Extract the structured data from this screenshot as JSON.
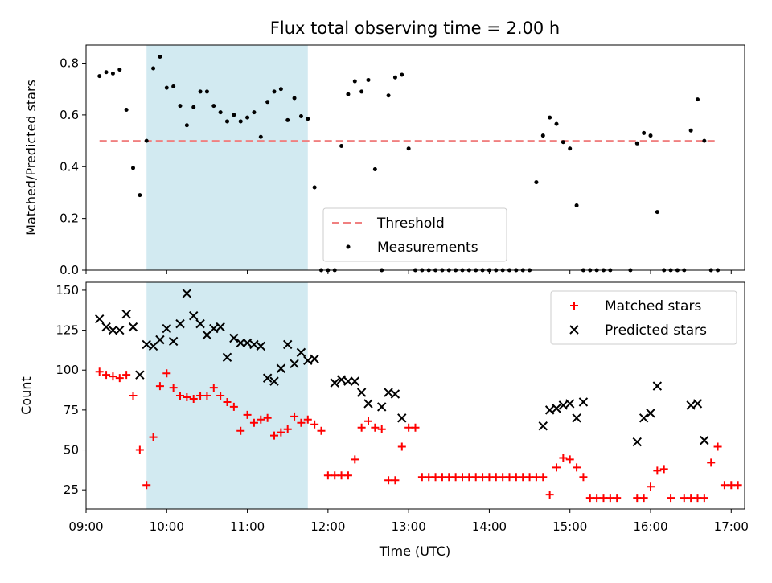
{
  "chart_data": [
    {
      "type": "scatter",
      "title": "Flux total observing time = 2.00 h",
      "xlabel": "",
      "ylabel": "Matched/Predicted stars",
      "xlim": [
        "09:00",
        "17:10"
      ],
      "ylim": [
        0,
        0.87
      ],
      "yticks": [
        "0.0",
        "0.2",
        "0.4",
        "0.6",
        "0.8"
      ],
      "highlight_span": [
        "09:45",
        "11:45"
      ],
      "highlight_color": "#add8e6",
      "threshold": {
        "name": "Threshold",
        "value": 0.5,
        "x_range": [
          "09:10",
          "16:50"
        ],
        "color": "#f08080"
      },
      "legend_position": "lower center",
      "series": [
        {
          "name": "Measurements",
          "color": "#000000",
          "points": [
            [
              "09:10",
              0.75
            ],
            [
              "09:15",
              0.765
            ],
            [
              "09:20",
              0.76
            ],
            [
              "09:25",
              0.775
            ],
            [
              "09:30",
              0.62
            ],
            [
              "09:35",
              0.395
            ],
            [
              "09:40",
              0.29
            ],
            [
              "09:45",
              0.5
            ],
            [
              "09:50",
              0.78
            ],
            [
              "09:55",
              0.825
            ],
            [
              "10:00",
              0.705
            ],
            [
              "10:05",
              0.71
            ],
            [
              "10:10",
              0.635
            ],
            [
              "10:15",
              0.56
            ],
            [
              "10:20",
              0.63
            ],
            [
              "10:25",
              0.69
            ],
            [
              "10:30",
              0.69
            ],
            [
              "10:35",
              0.635
            ],
            [
              "10:40",
              0.61
            ],
            [
              "10:45",
              0.575
            ],
            [
              "10:50",
              0.6
            ],
            [
              "10:55",
              0.575
            ],
            [
              "11:00",
              0.59
            ],
            [
              "11:05",
              0.61
            ],
            [
              "11:10",
              0.515
            ],
            [
              "11:15",
              0.65
            ],
            [
              "11:20",
              0.69
            ],
            [
              "11:25",
              0.7
            ],
            [
              "11:30",
              0.58
            ],
            [
              "11:35",
              0.665
            ],
            [
              "11:40",
              0.595
            ],
            [
              "11:45",
              0.585
            ],
            [
              "11:50",
              0.32
            ],
            [
              "11:55",
              0
            ],
            [
              "12:00",
              0
            ],
            [
              "12:05",
              0
            ],
            [
              "12:10",
              0.48
            ],
            [
              "12:15",
              0.68
            ],
            [
              "12:20",
              0.73
            ],
            [
              "12:25",
              0.69
            ],
            [
              "12:30",
              0.735
            ],
            [
              "12:35",
              0.39
            ],
            [
              "12:40",
              0
            ],
            [
              "12:45",
              0.675
            ],
            [
              "12:50",
              0.745
            ],
            [
              "12:55",
              0.755
            ],
            [
              "13:00",
              0.47
            ],
            [
              "13:05",
              0
            ],
            [
              "13:10",
              0
            ],
            [
              "13:15",
              0
            ],
            [
              "13:20",
              0
            ],
            [
              "13:25",
              0
            ],
            [
              "13:30",
              0
            ],
            [
              "13:35",
              0
            ],
            [
              "13:40",
              0
            ],
            [
              "13:45",
              0
            ],
            [
              "13:50",
              0
            ],
            [
              "13:55",
              0
            ],
            [
              "14:00",
              0
            ],
            [
              "14:05",
              0
            ],
            [
              "14:10",
              0
            ],
            [
              "14:15",
              0
            ],
            [
              "14:20",
              0
            ],
            [
              "14:25",
              0
            ],
            [
              "14:30",
              0
            ],
            [
              "14:35",
              0.34
            ],
            [
              "14:40",
              0.52
            ],
            [
              "14:45",
              0.59
            ],
            [
              "14:50",
              0.565
            ],
            [
              "14:55",
              0.495
            ],
            [
              "15:00",
              0.47
            ],
            [
              "15:05",
              0.25
            ],
            [
              "15:10",
              0
            ],
            [
              "15:15",
              0
            ],
            [
              "15:20",
              0
            ],
            [
              "15:25",
              0
            ],
            [
              "15:30",
              0
            ],
            [
              "15:45",
              0
            ],
            [
              "15:50",
              0.49
            ],
            [
              "15:55",
              0.53
            ],
            [
              "16:00",
              0.52
            ],
            [
              "16:05",
              0.225
            ],
            [
              "16:10",
              0
            ],
            [
              "16:15",
              0
            ],
            [
              "16:20",
              0
            ],
            [
              "16:25",
              0
            ],
            [
              "16:30",
              0.54
            ],
            [
              "16:35",
              0.66
            ],
            [
              "16:40",
              0.5
            ],
            [
              "16:45",
              0
            ],
            [
              "16:50",
              0
            ]
          ]
        }
      ]
    },
    {
      "type": "scatter",
      "title": "",
      "xlabel": "Time (UTC)",
      "ylabel": "Count",
      "xlim": [
        "09:00",
        "17:10"
      ],
      "ylim": [
        13,
        155
      ],
      "yticks": [
        "25",
        "50",
        "75",
        "100",
        "125",
        "150"
      ],
      "xticks": [
        "09:00",
        "10:00",
        "11:00",
        "12:00",
        "13:00",
        "14:00",
        "15:00",
        "16:00",
        "17:00"
      ],
      "highlight_span": [
        "09:45",
        "11:45"
      ],
      "highlight_color": "#add8e6",
      "legend_position": "upper right",
      "series": [
        {
          "name": "Matched stars",
          "marker": "+",
          "color": "#ff0000",
          "points": [
            [
              "09:10",
              99
            ],
            [
              "09:15",
              97
            ],
            [
              "09:20",
              96
            ],
            [
              "09:25",
              95
            ],
            [
              "09:30",
              97
            ],
            [
              "09:35",
              84
            ],
            [
              "09:40",
              50
            ],
            [
              "09:45",
              28
            ],
            [
              "09:50",
              58
            ],
            [
              "09:55",
              90
            ],
            [
              "10:00",
              98
            ],
            [
              "10:05",
              89
            ],
            [
              "10:10",
              84
            ],
            [
              "10:15",
              83
            ],
            [
              "10:20",
              82
            ],
            [
              "10:25",
              84
            ],
            [
              "10:30",
              84
            ],
            [
              "10:35",
              89
            ],
            [
              "10:40",
              84
            ],
            [
              "10:45",
              80
            ],
            [
              "10:50",
              77
            ],
            [
              "10:55",
              62
            ],
            [
              "11:00",
              72
            ],
            [
              "11:05",
              67
            ],
            [
              "11:10",
              69
            ],
            [
              "11:15",
              70
            ],
            [
              "11:20",
              59
            ],
            [
              "11:25",
              61
            ],
            [
              "11:30",
              63
            ],
            [
              "11:35",
              71
            ],
            [
              "11:40",
              67
            ],
            [
              "11:45",
              69
            ],
            [
              "11:50",
              66
            ],
            [
              "11:55",
              62
            ],
            [
              "12:00",
              34
            ],
            [
              "12:05",
              34
            ],
            [
              "12:10",
              34
            ],
            [
              "12:15",
              34
            ],
            [
              "12:20",
              44
            ],
            [
              "12:25",
              64
            ],
            [
              "12:30",
              68
            ],
            [
              "12:35",
              64
            ],
            [
              "12:40",
              63
            ],
            [
              "12:45",
              31
            ],
            [
              "12:50",
              31
            ],
            [
              "12:55",
              52
            ],
            [
              "13:00",
              64
            ],
            [
              "13:05",
              64
            ],
            [
              "13:10",
              33
            ],
            [
              "13:15",
              33
            ],
            [
              "13:20",
              33
            ],
            [
              "13:25",
              33
            ],
            [
              "13:30",
              33
            ],
            [
              "13:35",
              33
            ],
            [
              "13:40",
              33
            ],
            [
              "13:45",
              33
            ],
            [
              "13:50",
              33
            ],
            [
              "13:55",
              33
            ],
            [
              "14:00",
              33
            ],
            [
              "14:05",
              33
            ],
            [
              "14:10",
              33
            ],
            [
              "14:15",
              33
            ],
            [
              "14:20",
              33
            ],
            [
              "14:25",
              33
            ],
            [
              "14:30",
              33
            ],
            [
              "14:35",
              33
            ],
            [
              "14:40",
              33
            ],
            [
              "14:45",
              22
            ],
            [
              "14:50",
              39
            ],
            [
              "14:55",
              45
            ],
            [
              "15:00",
              44
            ],
            [
              "15:05",
              39
            ],
            [
              "15:10",
              33
            ],
            [
              "15:15",
              20
            ],
            [
              "15:20",
              20
            ],
            [
              "15:25",
              20
            ],
            [
              "15:30",
              20
            ],
            [
              "15:35",
              20
            ],
            [
              "15:50",
              20
            ],
            [
              "15:55",
              20
            ],
            [
              "16:00",
              27
            ],
            [
              "16:05",
              37
            ],
            [
              "16:10",
              38
            ],
            [
              "16:15",
              20
            ],
            [
              "16:25",
              20
            ],
            [
              "16:30",
              20
            ],
            [
              "16:35",
              20
            ],
            [
              "16:40",
              20
            ],
            [
              "16:45",
              42
            ],
            [
              "16:50",
              52
            ],
            [
              "16:55",
              28
            ],
            [
              "17:00",
              28
            ],
            [
              "17:05",
              28
            ]
          ]
        },
        {
          "name": "Predicted stars",
          "marker": "x",
          "color": "#000000",
          "points": [
            [
              "09:10",
              132
            ],
            [
              "09:15",
              127
            ],
            [
              "09:20",
              125
            ],
            [
              "09:25",
              125
            ],
            [
              "09:30",
              135
            ],
            [
              "09:35",
              127
            ],
            [
              "09:40",
              97
            ],
            [
              "09:45",
              116
            ],
            [
              "09:50",
              115
            ],
            [
              "09:55",
              119
            ],
            [
              "10:00",
              126
            ],
            [
              "10:05",
              118
            ],
            [
              "10:10",
              129
            ],
            [
              "10:15",
              148
            ],
            [
              "10:20",
              134
            ],
            [
              "10:25",
              129
            ],
            [
              "10:30",
              122
            ],
            [
              "10:35",
              126
            ],
            [
              "10:40",
              127
            ],
            [
              "10:45",
              108
            ],
            [
              "10:50",
              120
            ],
            [
              "10:55",
              117
            ],
            [
              "11:00",
              117
            ],
            [
              "11:05",
              116
            ],
            [
              "11:10",
              115
            ],
            [
              "11:15",
              95
            ],
            [
              "11:20",
              93
            ],
            [
              "11:25",
              101
            ],
            [
              "11:30",
              116
            ],
            [
              "11:35",
              104
            ],
            [
              "11:40",
              111
            ],
            [
              "11:45",
              106
            ],
            [
              "11:50",
              107
            ],
            [
              "12:05",
              92
            ],
            [
              "12:10",
              94
            ],
            [
              "12:15",
              93
            ],
            [
              "12:20",
              93
            ],
            [
              "12:25",
              86
            ],
            [
              "12:30",
              79
            ],
            [
              "12:40",
              77
            ],
            [
              "12:45",
              86
            ],
            [
              "12:50",
              85
            ],
            [
              "12:55",
              70
            ],
            [
              "14:40",
              65
            ],
            [
              "14:45",
              75
            ],
            [
              "14:50",
              76
            ],
            [
              "14:55",
              78
            ],
            [
              "15:00",
              79
            ],
            [
              "15:05",
              70
            ],
            [
              "15:10",
              80
            ],
            [
              "15:50",
              55
            ],
            [
              "15:55",
              70
            ],
            [
              "16:00",
              73
            ],
            [
              "16:05",
              90
            ],
            [
              "16:30",
              78
            ],
            [
              "16:35",
              79
            ],
            [
              "16:40",
              56
            ]
          ]
        }
      ]
    }
  ]
}
